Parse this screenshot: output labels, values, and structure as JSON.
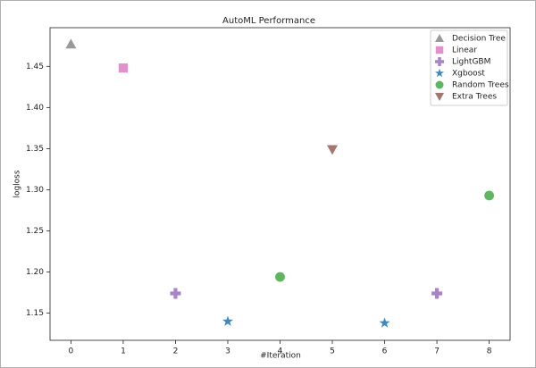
{
  "chart_data": {
    "type": "scatter",
    "title": "AutoML Performance",
    "x_label": "#Iteration",
    "y_label": "logloss",
    "xlim": [
      -0.4,
      8.4
    ],
    "ylim": [
      1.117,
      1.497
    ],
    "xticks": [
      0,
      1,
      2,
      3,
      4,
      5,
      6,
      7,
      8
    ],
    "yticks": [
      1.15,
      {
        "value": 1.2,
        "label": "1.20"
      },
      1.25,
      {
        "value": 1.3,
        "label": "1.30"
      },
      1.35,
      {
        "value": 1.4,
        "label": "1.40"
      },
      1.45
    ],
    "grid": false,
    "legend": "upper right",
    "series": [
      {
        "name": "Decision Tree",
        "color": "#999999",
        "marker": "triangle-up",
        "x": [
          0
        ],
        "values": [
          1.477
        ]
      },
      {
        "name": "Linear",
        "color": "#e58fd0",
        "marker": "square",
        "x": [
          1
        ],
        "values": [
          1.448
        ]
      },
      {
        "name": "LightGBM",
        "color": "#a883cc",
        "marker": "plus",
        "x": [
          2,
          7
        ],
        "values": [
          1.174,
          1.174
        ]
      },
      {
        "name": "Xgboost",
        "color": "#3b8bc2",
        "marker": "star",
        "x": [
          3,
          6
        ],
        "values": [
          1.14,
          1.138
        ]
      },
      {
        "name": "Random Trees",
        "color": "#5cb85c",
        "marker": "circle",
        "x": [
          4,
          8
        ],
        "values": [
          1.194,
          1.293
        ]
      },
      {
        "name": "Extra Trees",
        "color": "#a8756c",
        "marker": "triangle-down",
        "x": [
          5
        ],
        "values": [
          1.349
        ]
      }
    ]
  }
}
